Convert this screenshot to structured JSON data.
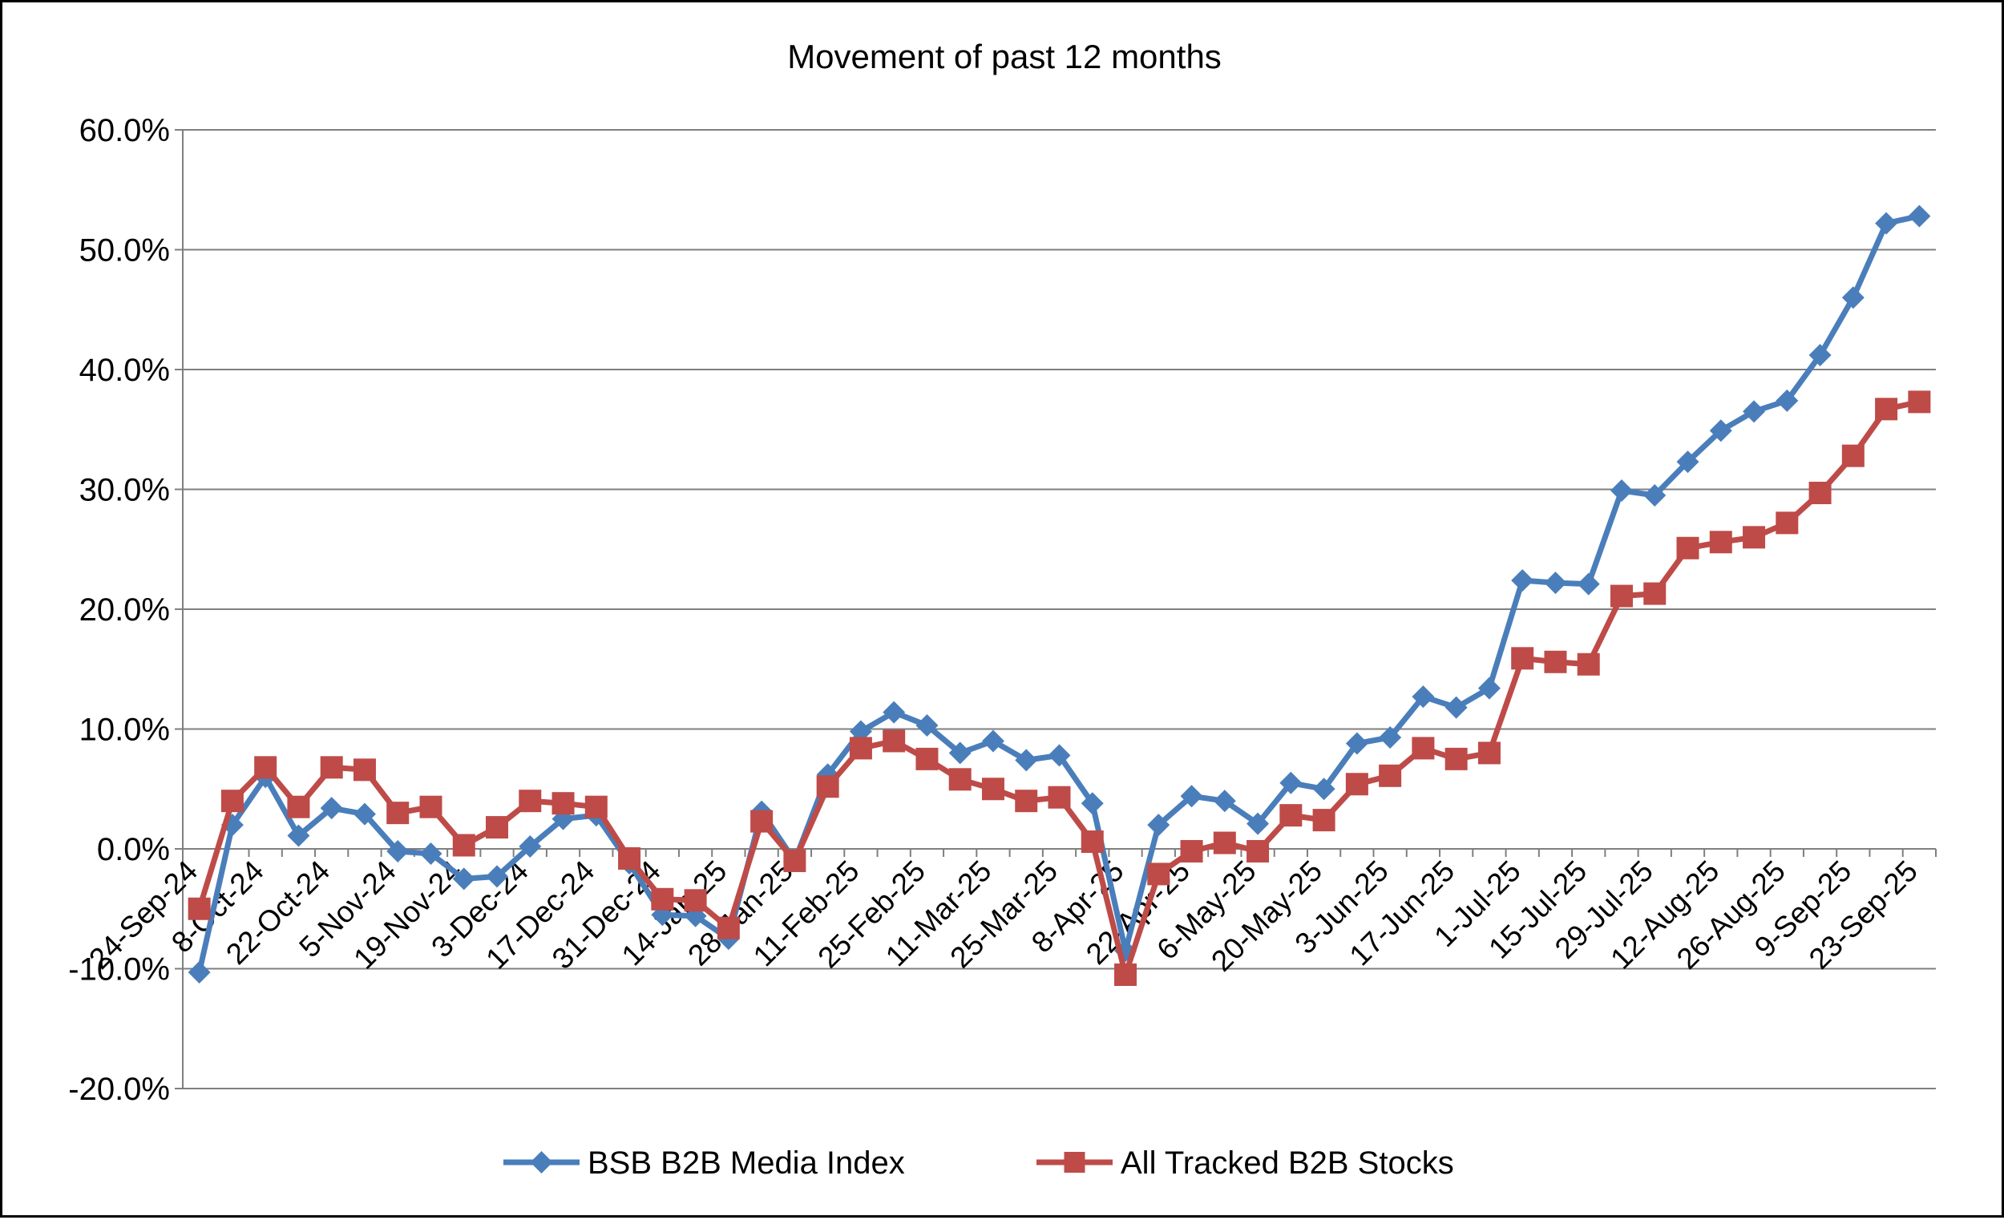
{
  "chart_data": {
    "type": "line",
    "title": "Movement of past 12 months",
    "xlabel": "",
    "ylabel": "",
    "ylim": [
      -20,
      60
    ],
    "y_tick_step": 10,
    "y_tick_labels": [
      "-20.0%",
      "-10.0%",
      "0.0%",
      "10.0%",
      "20.0%",
      "30.0%",
      "40.0%",
      "50.0%",
      "60.0%"
    ],
    "grid": true,
    "legend_position": "bottom",
    "x_tick_labels": [
      "24-Sep-24",
      "8-Oct-24",
      "22-Oct-24",
      "5-Nov-24",
      "19-Nov-24",
      "3-Dec-24",
      "17-Dec-24",
      "31-Dec-24",
      "14-Jan-25",
      "28-Jan-25",
      "11-Feb-25",
      "25-Feb-25",
      "11-Mar-25",
      "25-Mar-25",
      "8-Apr-25",
      "22-Apr-25",
      "6-May-25",
      "20-May-25",
      "3-Jun-25",
      "17-Jun-25",
      "1-Jul-25",
      "15-Jul-25",
      "29-Jul-25",
      "12-Aug-25",
      "26-Aug-25",
      "9-Sep-25",
      "23-Sep-25"
    ],
    "x_points": [
      "24-Sep-24",
      "1-Oct-24",
      "8-Oct-24",
      "15-Oct-24",
      "22-Oct-24",
      "29-Oct-24",
      "5-Nov-24",
      "12-Nov-24",
      "19-Nov-24",
      "26-Nov-24",
      "3-Dec-24",
      "10-Dec-24",
      "17-Dec-24",
      "24-Dec-24",
      "31-Dec-24",
      "7-Jan-25",
      "14-Jan-25",
      "21-Jan-25",
      "28-Jan-25",
      "4-Feb-25",
      "11-Feb-25",
      "18-Feb-25",
      "25-Feb-25",
      "4-Mar-25",
      "11-Mar-25",
      "18-Mar-25",
      "25-Mar-25",
      "1-Apr-25",
      "8-Apr-25",
      "15-Apr-25",
      "22-Apr-25",
      "29-Apr-25",
      "6-May-25",
      "13-May-25",
      "20-May-25",
      "27-May-25",
      "3-Jun-25",
      "10-Jun-25",
      "17-Jun-25",
      "24-Jun-25",
      "1-Jul-25",
      "8-Jul-25",
      "15-Jul-25",
      "22-Jul-25",
      "29-Jul-25",
      "5-Aug-25",
      "12-Aug-25",
      "19-Aug-25",
      "26-Aug-25",
      "2-Sep-25",
      "9-Sep-25",
      "16-Sep-25",
      "23-Sep-25"
    ],
    "series": [
      {
        "name": "BSB B2B Media Index",
        "color": "#4a7ebb",
        "marker": "diamond",
        "values": [
          -10.3,
          2.0,
          6.0,
          1.1,
          3.4,
          2.9,
          -0.2,
          -0.4,
          -2.5,
          -2.3,
          0.2,
          2.5,
          2.8,
          -1.2,
          -5.5,
          -5.6,
          -7.5,
          3.1,
          -1.0,
          6.2,
          9.8,
          11.4,
          10.3,
          8.0,
          9.0,
          7.4,
          7.8,
          3.8,
          -8.5,
          2.0,
          4.4,
          4.0,
          2.1,
          5.5,
          5.0,
          8.8,
          9.3,
          12.7,
          11.8,
          13.4,
          22.4,
          22.2,
          22.1,
          29.9,
          29.5,
          32.3,
          34.9,
          36.5,
          37.4,
          41.2,
          46.0,
          52.2,
          52.8
        ]
      },
      {
        "name": "All Tracked B2B Stocks",
        "color": "#be4b48",
        "marker": "square",
        "values": [
          -5.0,
          4.0,
          6.8,
          3.5,
          6.8,
          6.6,
          3.0,
          3.5,
          0.3,
          1.8,
          4.0,
          3.8,
          3.5,
          -0.8,
          -4.2,
          -4.3,
          -6.6,
          2.3,
          -1.0,
          5.2,
          8.4,
          9.0,
          7.5,
          5.8,
          5.0,
          4.0,
          4.3,
          0.6,
          -10.5,
          -2.1,
          -0.2,
          0.5,
          -0.2,
          2.8,
          2.4,
          5.4,
          6.1,
          8.4,
          7.5,
          8.0,
          15.9,
          15.6,
          15.4,
          21.1,
          21.3,
          25.1,
          25.6,
          26.0,
          27.2,
          29.7,
          32.8,
          36.7,
          37.3
        ]
      }
    ]
  },
  "legend": {
    "items": [
      {
        "label": "BSB B2B Media Index",
        "color": "#4a7ebb",
        "marker": "diamond"
      },
      {
        "label": "All Tracked B2B Stocks",
        "color": "#be4b48",
        "marker": "square"
      }
    ]
  }
}
